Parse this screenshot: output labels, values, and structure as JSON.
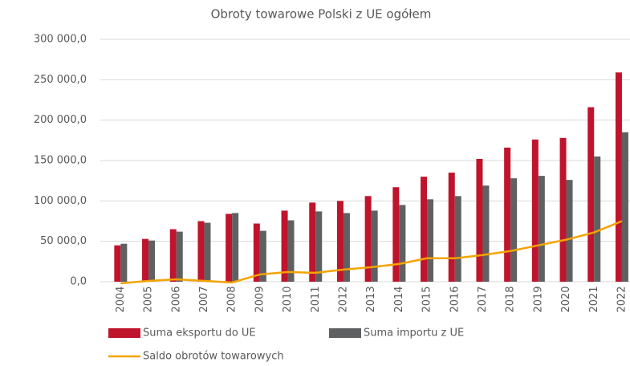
{
  "chart_data": {
    "type": "bar_line",
    "title": "Obroty towarowe Polski z UE ogółem",
    "categories": [
      "2004",
      "2005",
      "2006",
      "2007",
      "2008",
      "2009",
      "2010",
      "2011",
      "2012",
      "2013",
      "2014",
      "2015",
      "2016",
      "2017",
      "2018",
      "2019",
      "2020",
      "2021",
      "2022"
    ],
    "series": [
      {
        "name": "Suma eksportu do UE",
        "type": "bar",
        "color": "#c0142c",
        "values": [
          45000,
          53000,
          65000,
          75000,
          84000,
          72000,
          88000,
          98000,
          100000,
          106000,
          117000,
          130000,
          135000,
          152000,
          166000,
          176000,
          178000,
          216000,
          259000
        ]
      },
      {
        "name": "Suma importu z UE",
        "type": "bar",
        "color": "#5f6062",
        "values": [
          47000,
          51000,
          62000,
          73000,
          85000,
          63000,
          76000,
          87000,
          85000,
          88000,
          95000,
          102000,
          106000,
          119000,
          128000,
          131000,
          126000,
          155000,
          185000
        ]
      },
      {
        "name": "Saldo obrotów towarowych",
        "type": "line",
        "color": "#f5a300",
        "values": [
          -2000,
          1000,
          3000,
          1000,
          -1000,
          9000,
          12000,
          11000,
          15000,
          18000,
          22000,
          29000,
          29000,
          33000,
          38000,
          45000,
          52000,
          61000,
          75000
        ]
      }
    ],
    "ylim": [
      0,
      300000
    ],
    "yticks": [
      {
        "value": 0,
        "label": "0,0"
      },
      {
        "value": 50000,
        "label": "50 000,0"
      },
      {
        "value": 100000,
        "label": "100 000,0"
      },
      {
        "value": 150000,
        "label": "150 000,0"
      },
      {
        "value": 200000,
        "label": "200 000,0"
      },
      {
        "value": 250000,
        "label": "250 000,0"
      },
      {
        "value": 300000,
        "label": "300 000,0"
      }
    ],
    "grid": true,
    "legend": "bottom"
  }
}
